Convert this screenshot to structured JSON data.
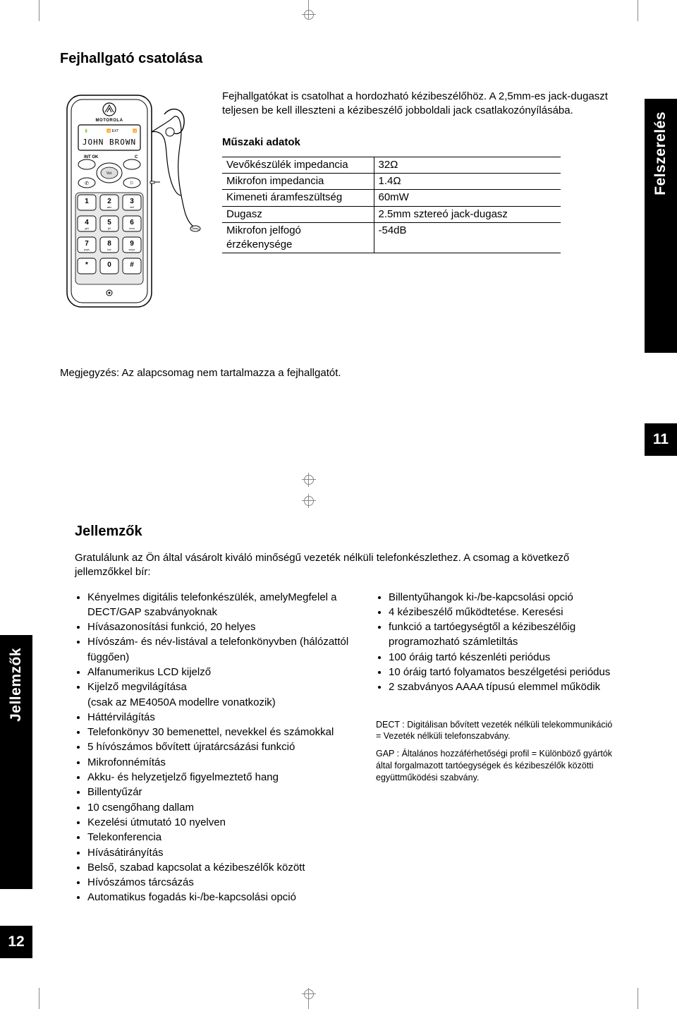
{
  "upper": {
    "title": "Fejhallgató csatolása",
    "intro": "Fejhallgatókat is csatolhat a hordozható kézibeszélőhöz. A 2,5mm-es jack-dugaszt teljesen be kell illeszteni a kézibeszélő jobboldali jack csatlakozónyílásába.",
    "spec_title": "Műszaki adatok",
    "specs": [
      {
        "label": "Vevőkészülék impedancia",
        "value": "32Ω"
      },
      {
        "label": "Mikrofon impedancia",
        "value": "1.4Ω"
      },
      {
        "label": "Kimeneti áramfeszültség",
        "value": "60mW"
      },
      {
        "label": "Dugasz",
        "value": "2.5mm sztereó jack-dugasz"
      },
      {
        "label": "Mikrofon jelfogó érzékenysége",
        "value": "-54dB"
      }
    ],
    "note": "Megjegyzés: Az alapcsomag nem tartalmazza a fejhallgatót.",
    "tab_label": "Felszerelés",
    "page_num": "11"
  },
  "lower": {
    "title": "Jellemzők",
    "intro": "Gratulálunk az Ön által vásárolt kiváló minőségű vezeték nélküli telefonkészlethez. A csomag a következő jellemzőkkel bír:",
    "left_items": [
      "Kényelmes digitális telefonkészülék, amelyMegfelel a DECT/GAP szabványoknak",
      "Hívásazonosítási funkció, 20 helyes",
      "Hívószám- és név-listával a telefonkönyvben (hálózattól függően)",
      "Alfanumerikus LCD kijelző",
      "Kijelző megvilágítása\n(csak az ME4050A modellre vonatkozik)",
      "Háttérvilágítás",
      "Telefonkönyv 30 bemenettel, nevekkel és számokkal",
      "5 hívószámos bővített újratárcsázási funkció",
      "Mikrofonnémítás",
      "Akku- és helyzetjelző figyelmeztető hang",
      "Billentyűzár",
      "10 csengőhang dallam",
      "Kezelési útmutató 10 nyelven",
      "Telekonferencia",
      "Hívásátirányítás",
      "Belső, szabad kapcsolat a kézibeszélők között",
      "Hívószámos tárcsázás",
      "Automatikus fogadás ki-/be-kapcsolási opció"
    ],
    "right_items": [
      "Billentyűhangok ki-/be-kapcsolási opció",
      "4 kézibeszélő működtetése. Keresési",
      "funkció a tartóegységtől a kézibeszélőig programozható számletiltás",
      "100 óráig tartó készenléti periódus",
      "10 óráig tartó folyamatos beszélgetési periódus",
      "2 szabványos AAAA típusú elemmel működik"
    ],
    "glossary": {
      "dect": "DECT : Digitálisan bővített vezeték nélküli telekommunikáció = Vezeték nélküli telefonszabvány.",
      "gap": "GAP : Általános hozzáférhetőségi profil = Különböző gyártók által forgalmazott tartóegységek és kézibeszélők közötti együttműködési  szabvány."
    },
    "tab_label": "Jellemzők",
    "page_num": "12"
  },
  "phone": {
    "brand": "MOTOROLA",
    "display": "JOHN BROWN",
    "keys": [
      [
        "1",
        "2",
        "3"
      ],
      [
        "4",
        "5",
        "6"
      ],
      [
        "7",
        "8",
        "9"
      ],
      [
        "*",
        "0",
        "#"
      ]
    ],
    "sublabels": [
      [
        "",
        "abc",
        "def"
      ],
      [
        "ghi",
        "jkl",
        "mno"
      ],
      [
        "pqrs",
        "tuv",
        "wxyz"
      ],
      [
        "",
        "",
        ""
      ]
    ],
    "colors": {
      "outline": "#000000",
      "screen_bg": "#ffffff"
    }
  },
  "style": {
    "text_color": "#000000",
    "bg_color": "#ffffff",
    "tab_bg": "#000000",
    "tab_fg": "#ffffff",
    "font_family": "Arial, Helvetica, sans-serif",
    "title_fontsize_pt": 15,
    "body_fontsize_pt": 11
  }
}
